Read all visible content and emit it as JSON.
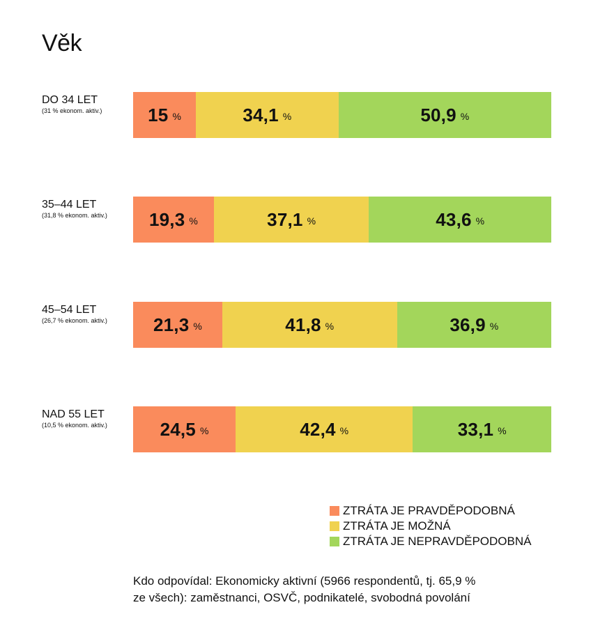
{
  "title": "Věk",
  "chart_data": {
    "type": "bar",
    "orientation": "horizontal",
    "stacked": true,
    "title": "Věk",
    "unit": "%",
    "categories": [
      "DO 34 LET",
      "35–44 LET",
      "45–54 LET",
      "NAD 55 LET"
    ],
    "subtitles": [
      "(31 % ekonom. aktiv.)",
      "(31,8 % ekonom. aktiv.)",
      "(26,7 % ekonom. aktiv.)",
      "(10,5 % ekonom. aktiv.)"
    ],
    "series": [
      {
        "name": "ZTRÁTA JE PRAVDĚPODOBNÁ",
        "color": "#fa8b5c",
        "values": [
          15,
          19.3,
          21.3,
          24.5
        ],
        "labels": [
          "15",
          "19,3",
          "21,3",
          "24,5"
        ]
      },
      {
        "name": "ZTRÁTA JE MOŽNÁ",
        "color": "#f0d24f",
        "values": [
          34.1,
          37.1,
          41.8,
          42.4
        ],
        "labels": [
          "34,1",
          "37,1",
          "41,8",
          "42,4"
        ]
      },
      {
        "name": "ZTRÁTA JE NEPRAVDĚPODOBNÁ",
        "color": "#a3d65b",
        "values": [
          50.9,
          43.6,
          36.9,
          33.1
        ],
        "labels": [
          "50,9",
          "43,6",
          "36,9",
          "33,1"
        ]
      }
    ],
    "legend": "bottom-right",
    "grid": false
  },
  "footnote": {
    "line1": "Kdo odpovídal: Ekonomicky aktivní (5966 respondentů, tj. 65,9 %",
    "line2": "ze všech): zaměstnanci, OSVČ, podnikatelé, svobodná povolání"
  }
}
